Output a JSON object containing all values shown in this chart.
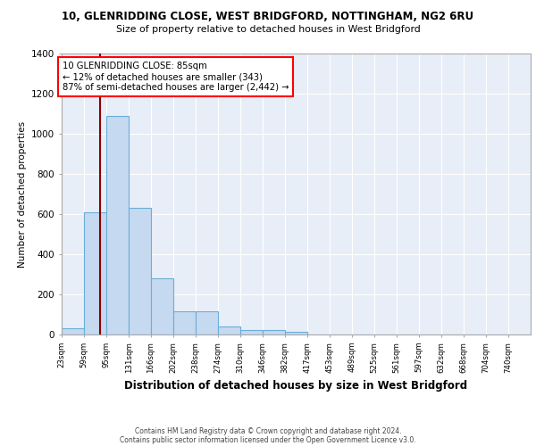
{
  "title1": "10, GLENRIDDING CLOSE, WEST BRIDGFORD, NOTTINGHAM, NG2 6RU",
  "title2": "Size of property relative to detached houses in West Bridgford",
  "xlabel": "Distribution of detached houses by size in West Bridgford",
  "ylabel": "Number of detached properties",
  "bins": [
    "23sqm",
    "59sqm",
    "95sqm",
    "131sqm",
    "166sqm",
    "202sqm",
    "238sqm",
    "274sqm",
    "310sqm",
    "346sqm",
    "382sqm",
    "417sqm",
    "453sqm",
    "489sqm",
    "525sqm",
    "561sqm",
    "597sqm",
    "632sqm",
    "668sqm",
    "704sqm",
    "740sqm"
  ],
  "values": [
    30,
    610,
    1090,
    630,
    280,
    115,
    115,
    40,
    22,
    22,
    12,
    0,
    0,
    0,
    0,
    0,
    0,
    0,
    0,
    0,
    0
  ],
  "bar_color": "#c5d9f0",
  "bar_edge_color": "#6aaed6",
  "property_line_x": 85,
  "bin_edges_numeric": [
    23,
    59,
    95,
    131,
    166,
    202,
    238,
    274,
    310,
    346,
    382,
    417,
    453,
    489,
    525,
    561,
    597,
    632,
    668,
    704,
    740
  ],
  "annotation_text": "10 GLENRIDDING CLOSE: 85sqm\n← 12% of detached houses are smaller (343)\n87% of semi-detached houses are larger (2,442) →",
  "annotation_box_color": "white",
  "annotation_box_edge": "red",
  "vline_color": "#8b0000",
  "ylim": [
    0,
    1400
  ],
  "yticks": [
    0,
    200,
    400,
    600,
    800,
    1000,
    1200,
    1400
  ],
  "footer1": "Contains HM Land Registry data © Crown copyright and database right 2024.",
  "footer2": "Contains public sector information licensed under the Open Government Licence v3.0.",
  "background_color": "white",
  "plot_bg_color": "#e8eef8"
}
